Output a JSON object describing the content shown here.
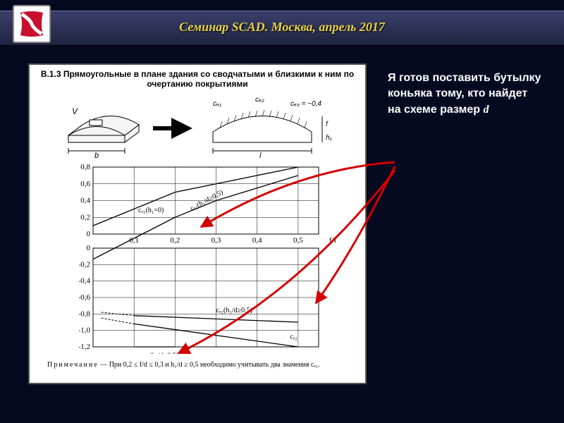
{
  "title": "Семинар SCAD. Москва, апрель 2017",
  "figure": {
    "heading": "В.1.3 Прямоугольные в плане здания со сводчатыми и близкими к ним по очертанию покрытиями",
    "diagram": {
      "left_label_V": "V",
      "left_label_b": "b",
      "right_label_ce1": "cₑ₁",
      "right_label_ce2": "cₑ₂",
      "right_label_ce3": "cₑ₃ = −0,4",
      "right_label_f": "f",
      "right_label_h1": "h₁",
      "right_label_l": "l"
    },
    "chart": {
      "x_label": "f/l",
      "x_ticks": [
        "0,1",
        "0,2",
        "0,3",
        "0,4",
        "0,5"
      ],
      "x_values": [
        0.1,
        0.2,
        0.3,
        0.4,
        0.5
      ],
      "y_ticks_upper": [
        "0,8",
        "0,6",
        "0,4",
        "0,2",
        "0"
      ],
      "y_vals_upper": [
        0.8,
        0.6,
        0.4,
        0.2,
        0
      ],
      "y_ticks_lower": [
        "0",
        "-0,2",
        "-0,4",
        "-0,6",
        "-0,8",
        "-1,0",
        "-1,2"
      ],
      "y_vals_lower": [
        0,
        -0.2,
        -0.4,
        -0.6,
        -0.8,
        -1.0,
        -1.2
      ],
      "curves": {
        "ce1_h1_0_label": "cₑ₁(h₁=0)",
        "ce1_h1_0": [
          [
            0.0,
            0.1
          ],
          [
            0.1,
            0.3
          ],
          [
            0.2,
            0.5
          ],
          [
            0.5,
            0.8
          ]
        ],
        "ce1_h1d_05_label": "cₑ₁(h₁/d≥0,5)",
        "ce1_h1d_05": [
          [
            0.0,
            -0.3
          ],
          [
            0.2,
            0.2
          ],
          [
            0.3,
            0.4
          ],
          [
            0.5,
            0.7
          ]
        ],
        "ce2_h1d_05_label": "cₑ₂(h₁/d≥0,5)",
        "ce2_h1d_05": [
          [
            0.1,
            -0.82
          ],
          [
            0.5,
            -0.9
          ]
        ],
        "ce2_label": "cₑ₂",
        "ce2": [
          [
            0.1,
            -0.92
          ],
          [
            0.5,
            -1.2
          ]
        ],
        "ce1_h1d_alt_label": "cₑ₁(h₁/d≥0,5)",
        "ce1_h1d_alt": [
          [
            0.1,
            -1.2
          ],
          [
            0.2,
            -1.2
          ]
        ]
      },
      "grid_color": "#000000",
      "line_color": "#000000",
      "background": "#ffffff",
      "font_size_axis": 11
    },
    "note_label": "Примечание",
    "note_text": "— При 0,2 ≤ f/d ≤ 0,3 и h₁/d ≥ 0,5 необходимо учитывать два значения cₑ₁."
  },
  "sidetext": {
    "line": "Я готов поставить бутылку коньяка тому, кто найдет на схеме размер",
    "var": "d"
  },
  "arrows": {
    "color": "#d40000",
    "stroke": 3,
    "paths": [
      {
        "from": [
          560,
          230
        ],
        "to": [
          285,
          322
        ],
        "ctrl": [
          420,
          240
        ]
      },
      {
        "from": [
          560,
          236
        ],
        "to": [
          448,
          430
        ],
        "ctrl": [
          505,
          350
        ]
      },
      {
        "from": [
          560,
          242
        ],
        "to": [
          253,
          501
        ],
        "ctrl": [
          420,
          420
        ]
      }
    ]
  }
}
